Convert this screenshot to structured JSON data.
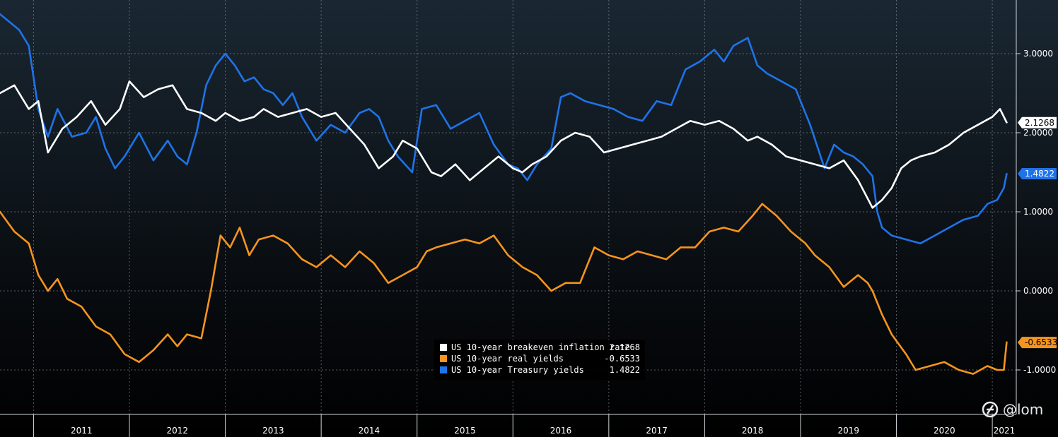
{
  "chart_data": {
    "type": "line",
    "title": "",
    "xlabel": "",
    "ylabel": "",
    "x_ticks": [
      "2011",
      "2012",
      "2013",
      "2014",
      "2015",
      "2016",
      "2017",
      "2018",
      "2019",
      "2020",
      "2021"
    ],
    "y_ticks": [
      "3.0000",
      "2.0000",
      "1.0000",
      "0.0000",
      "-1.0000"
    ],
    "y_tick_values": [
      3,
      2,
      1,
      0,
      -1
    ],
    "ylim": [
      -1.5,
      3.6
    ],
    "xlim": [
      2010.65,
      2021.25
    ],
    "grid": true,
    "legend_position": "bottom-center",
    "series": [
      {
        "name": "US 10-year breakeven inflation rate",
        "last_value": "2.1268",
        "color": "#ffffff",
        "x": [
          2010.65,
          2010.8,
          2010.95,
          2011.05,
          2011.15,
          2011.3,
          2011.45,
          2011.6,
          2011.75,
          2011.9,
          2012.0,
          2012.15,
          2012.3,
          2012.45,
          2012.6,
          2012.75,
          2012.9,
          2013.0,
          2013.15,
          2013.3,
          2013.4,
          2013.55,
          2013.7,
          2013.85,
          2014.0,
          2014.15,
          2014.3,
          2014.45,
          2014.6,
          2014.75,
          2014.85,
          2015.0,
          2015.15,
          2015.25,
          2015.4,
          2015.55,
          2015.7,
          2015.85,
          2016.0,
          2016.1,
          2016.2,
          2016.35,
          2016.5,
          2016.65,
          2016.8,
          2016.95,
          2017.1,
          2017.25,
          2017.4,
          2017.55,
          2017.7,
          2017.85,
          2018.0,
          2018.15,
          2018.3,
          2018.45,
          2018.55,
          2018.7,
          2018.85,
          2019.0,
          2019.15,
          2019.3,
          2019.45,
          2019.6,
          2019.75,
          2019.85,
          2019.95,
          2020.05,
          2020.15,
          2020.25,
          2020.4,
          2020.55,
          2020.7,
          2020.85,
          2021.0,
          2021.08,
          2021.15
        ],
        "values": [
          2.5,
          2.6,
          2.3,
          2.4,
          1.75,
          2.05,
          2.2,
          2.4,
          2.1,
          2.3,
          2.65,
          2.45,
          2.55,
          2.6,
          2.3,
          2.25,
          2.15,
          2.25,
          2.15,
          2.2,
          2.3,
          2.2,
          2.25,
          2.3,
          2.2,
          2.25,
          2.05,
          1.85,
          1.55,
          1.7,
          1.9,
          1.8,
          1.5,
          1.45,
          1.6,
          1.4,
          1.55,
          1.7,
          1.55,
          1.5,
          1.6,
          1.7,
          1.9,
          2.0,
          1.95,
          1.75,
          1.8,
          1.85,
          1.9,
          1.95,
          2.05,
          2.15,
          2.1,
          2.15,
          2.05,
          1.9,
          1.95,
          1.85,
          1.7,
          1.65,
          1.6,
          1.55,
          1.65,
          1.4,
          1.05,
          1.15,
          1.3,
          1.55,
          1.65,
          1.7,
          1.75,
          1.85,
          2.0,
          2.1,
          2.2,
          2.3,
          2.13
        ]
      },
      {
        "name": "US 10-year real yields",
        "last_value": "-0.6533",
        "color": "#f7941d",
        "x": [
          2010.65,
          2010.8,
          2010.95,
          2011.05,
          2011.15,
          2011.25,
          2011.35,
          2011.5,
          2011.65,
          2011.8,
          2011.95,
          2012.1,
          2012.25,
          2012.4,
          2012.5,
          2012.6,
          2012.75,
          2012.85,
          2012.95,
          2013.05,
          2013.15,
          2013.25,
          2013.35,
          2013.5,
          2013.65,
          2013.8,
          2013.95,
          2014.1,
          2014.25,
          2014.4,
          2014.55,
          2014.7,
          2014.85,
          2015.0,
          2015.1,
          2015.2,
          2015.35,
          2015.5,
          2015.65,
          2015.8,
          2015.95,
          2016.1,
          2016.25,
          2016.4,
          2016.55,
          2016.7,
          2016.85,
          2017.0,
          2017.15,
          2017.3,
          2017.45,
          2017.6,
          2017.75,
          2017.9,
          2018.05,
          2018.2,
          2018.35,
          2018.5,
          2018.6,
          2018.75,
          2018.9,
          2019.05,
          2019.15,
          2019.3,
          2019.45,
          2019.55,
          2019.6,
          2019.7,
          2019.75,
          2019.85,
          2019.95,
          2020.1,
          2020.2,
          2020.35,
          2020.5,
          2020.65,
          2020.8,
          2020.95,
          2021.05,
          2021.12,
          2021.15
        ],
        "values": [
          1.0,
          0.75,
          0.6,
          0.2,
          0.0,
          0.15,
          -0.1,
          -0.2,
          -0.45,
          -0.55,
          -0.8,
          -0.9,
          -0.75,
          -0.55,
          -0.7,
          -0.55,
          -0.6,
          0.0,
          0.7,
          0.55,
          0.8,
          0.45,
          0.65,
          0.7,
          0.6,
          0.4,
          0.3,
          0.45,
          0.3,
          0.5,
          0.35,
          0.1,
          0.2,
          0.3,
          0.5,
          0.55,
          0.6,
          0.65,
          0.6,
          0.7,
          0.45,
          0.3,
          0.2,
          0.0,
          0.1,
          0.1,
          0.55,
          0.45,
          0.4,
          0.5,
          0.45,
          0.4,
          0.55,
          0.55,
          0.75,
          0.8,
          0.75,
          0.95,
          1.1,
          0.95,
          0.75,
          0.6,
          0.45,
          0.3,
          0.05,
          0.15,
          0.2,
          0.1,
          0.0,
          -0.3,
          -0.55,
          -0.8,
          -1.0,
          -0.95,
          -0.9,
          -1.0,
          -1.05,
          -0.95,
          -1.0,
          -1.0,
          -0.65
        ]
      },
      {
        "name": "US 10-year Treasury yields",
        "last_value": "1.4822",
        "color": "#1f73e8",
        "x": [
          2010.65,
          2010.75,
          2010.85,
          2010.95,
          2011.05,
          2011.15,
          2011.25,
          2011.4,
          2011.55,
          2011.65,
          2011.75,
          2011.85,
          2011.95,
          2012.1,
          2012.25,
          2012.4,
          2012.5,
          2012.6,
          2012.7,
          2012.8,
          2012.9,
          2013.0,
          2013.1,
          2013.2,
          2013.3,
          2013.4,
          2013.5,
          2013.6,
          2013.7,
          2013.8,
          2013.95,
          2014.1,
          2014.25,
          2014.4,
          2014.5,
          2014.6,
          2014.7,
          2014.8,
          2014.95,
          2015.05,
          2015.2,
          2015.35,
          2015.5,
          2015.65,
          2015.8,
          2015.95,
          2016.05,
          2016.15,
          2016.25,
          2016.4,
          2016.5,
          2016.6,
          2016.75,
          2016.9,
          2017.05,
          2017.2,
          2017.35,
          2017.5,
          2017.65,
          2017.8,
          2017.95,
          2018.1,
          2018.2,
          2018.3,
          2018.45,
          2018.55,
          2018.65,
          2018.8,
          2018.95,
          2019.1,
          2019.25,
          2019.35,
          2019.45,
          2019.55,
          2019.65,
          2019.75,
          2019.8,
          2019.85,
          2019.95,
          2020.1,
          2020.25,
          2020.4,
          2020.55,
          2020.7,
          2020.85,
          2020.95,
          2021.05,
          2021.12,
          2021.15
        ],
        "values": [
          3.5,
          3.4,
          3.3,
          3.1,
          2.3,
          1.95,
          2.3,
          1.95,
          2.0,
          2.2,
          1.8,
          1.55,
          1.7,
          2.0,
          1.65,
          1.9,
          1.7,
          1.6,
          2.0,
          2.6,
          2.85,
          3.0,
          2.85,
          2.65,
          2.7,
          2.55,
          2.5,
          2.35,
          2.5,
          2.2,
          1.9,
          2.1,
          2.0,
          2.25,
          2.3,
          2.2,
          1.9,
          1.7,
          1.5,
          2.3,
          2.35,
          2.05,
          2.15,
          2.25,
          1.85,
          1.6,
          1.55,
          1.4,
          1.6,
          1.8,
          2.45,
          2.5,
          2.4,
          2.35,
          2.3,
          2.2,
          2.15,
          2.4,
          2.35,
          2.8,
          2.9,
          3.05,
          2.9,
          3.1,
          3.2,
          2.85,
          2.75,
          2.65,
          2.55,
          2.1,
          1.55,
          1.85,
          1.75,
          1.7,
          1.6,
          1.45,
          1.0,
          0.8,
          0.7,
          0.65,
          0.6,
          0.7,
          0.8,
          0.9,
          0.95,
          1.1,
          1.15,
          1.3,
          1.48
        ]
      }
    ]
  },
  "watermark": {
    "text": "@lom",
    "icon": "bloomberg-logo-icon"
  }
}
